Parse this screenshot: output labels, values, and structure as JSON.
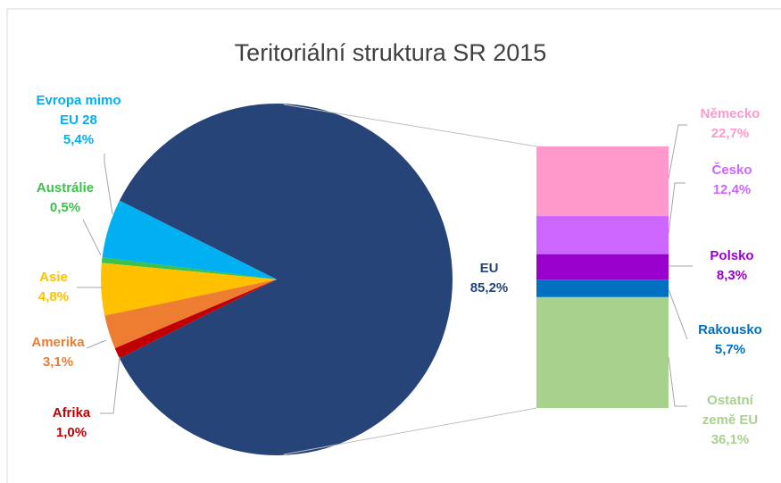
{
  "chart_data": {
    "type": "pie",
    "title": "Teritoriální struktura SR 2015",
    "categories": [
      "EU",
      "Evropa mimo EU 28",
      "Austrálie",
      "Asie",
      "Amerika",
      "Afrika"
    ],
    "values": [
      85.2,
      5.4,
      0.5,
      4.8,
      3.1,
      1.0
    ],
    "value_labels": [
      "85,2%",
      "5,4%",
      "0,5%",
      "4,8%",
      "3,1%",
      "1,0%"
    ],
    "colors": [
      "#264478",
      "#00b0f0",
      "#3cc24a",
      "#ffc000",
      "#ed7d31",
      "#c00000"
    ],
    "label_colors": [
      "#264478",
      "#00b0f0",
      "#3cc24a",
      "#ffc000",
      "#ed7d31",
      "#c00000"
    ],
    "breakdown": {
      "type": "bar",
      "categories": [
        "Německo",
        "Česko",
        "Polsko",
        "Rakousko",
        "Ostatní země EU"
      ],
      "values": [
        22.7,
        12.4,
        8.3,
        5.7,
        36.1
      ],
      "value_labels": [
        "22,7%",
        "12,4%",
        "8,3%",
        "5,7%",
        "36,1%"
      ],
      "colors": [
        "#ff99cc",
        "#cc66ff",
        "#9900cc",
        "#0070c0",
        "#a9d18e"
      ]
    }
  }
}
